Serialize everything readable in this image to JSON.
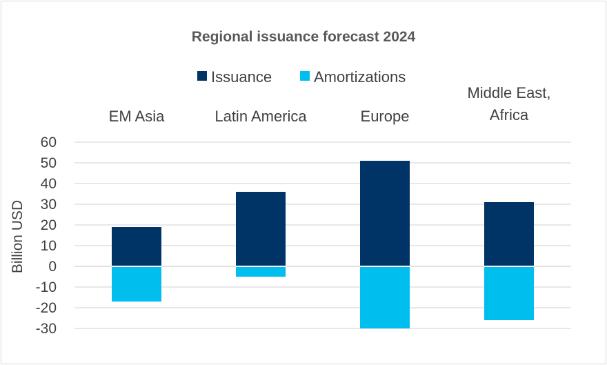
{
  "chart_data": {
    "type": "bar",
    "stacked": true,
    "title": "Regional issuance forecast 2024",
    "ylabel": "Billion USD",
    "xlabel": "",
    "categories": [
      [
        "EM Asia"
      ],
      [
        "Latin America"
      ],
      [
        "Europe"
      ],
      [
        "Middle East,",
        "Africa"
      ]
    ],
    "series": [
      {
        "name": "Issuance",
        "color": "#003366",
        "values": [
          19,
          36,
          51,
          31
        ]
      },
      {
        "name": "Amortizations",
        "color": "#00BFEF",
        "values": [
          -17,
          -5,
          -30,
          -26
        ]
      }
    ],
    "ylim": [
      -30,
      60
    ],
    "yticks": [
      60,
      50,
      40,
      30,
      20,
      10,
      0,
      -10,
      -20,
      -30
    ],
    "grid": true,
    "legend_position": "top"
  }
}
